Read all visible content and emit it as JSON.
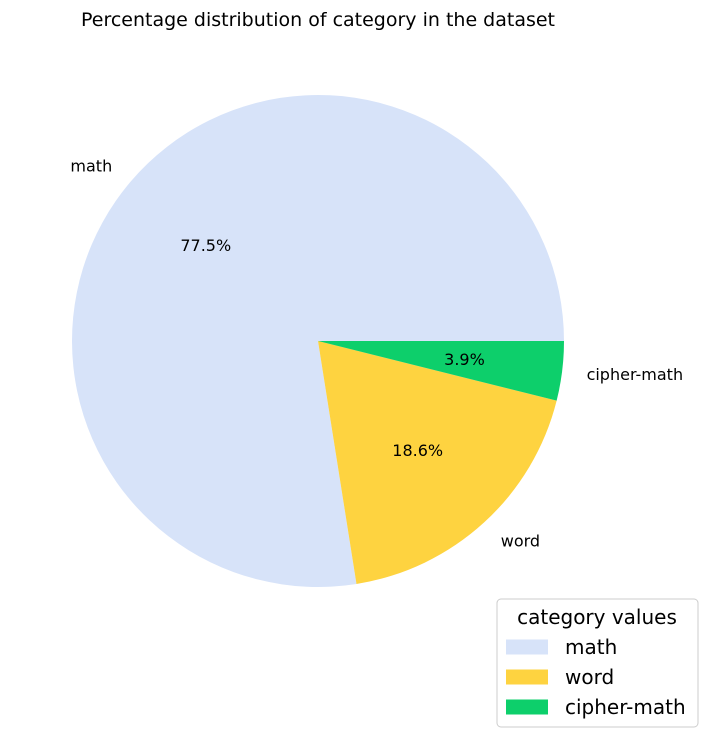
{
  "chart_data": {
    "type": "pie",
    "title": "Percentage distribution of category in the dataset",
    "categories": [
      "math",
      "word",
      "cipher-math"
    ],
    "values": [
      77.5,
      18.6,
      3.9
    ],
    "percent_labels": [
      "77.5%",
      "18.6%",
      "3.9%"
    ],
    "colors": [
      "#d7e3f9",
      "#fed340",
      "#0dcf6b"
    ],
    "legend": {
      "title": "category values",
      "entries": [
        "math",
        "word",
        "cipher-math"
      ],
      "placement": "bottom-right"
    }
  }
}
